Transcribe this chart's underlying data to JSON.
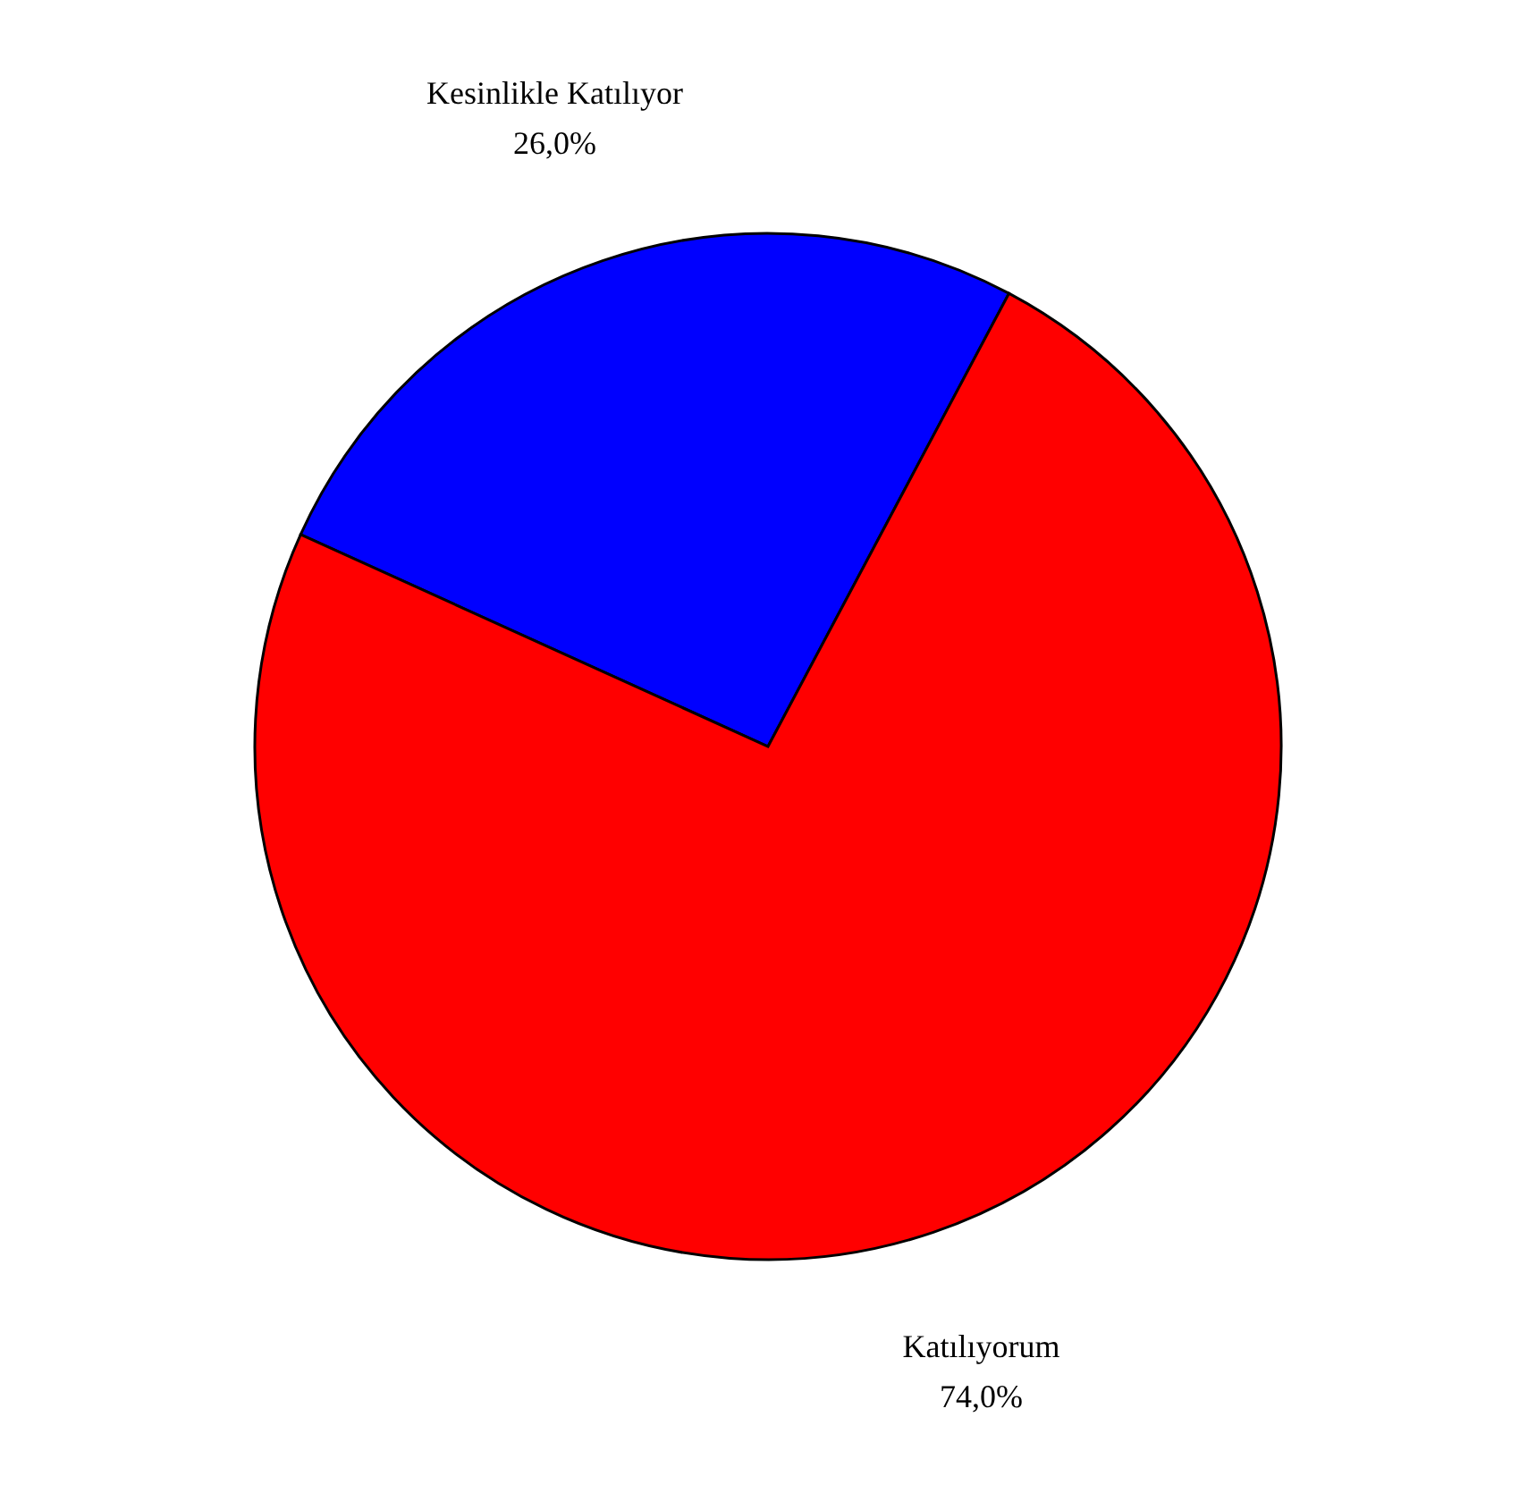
{
  "chart_data": {
    "type": "pie",
    "categories": [
      "Kesinlikle Katılıyor",
      "Katılıyorum"
    ],
    "values": [
      26,
      74
    ],
    "colors": [
      "#0000ff",
      "#ff0000"
    ],
    "value_labels": [
      "26,0%",
      "74,0%"
    ],
    "legend": false
  }
}
